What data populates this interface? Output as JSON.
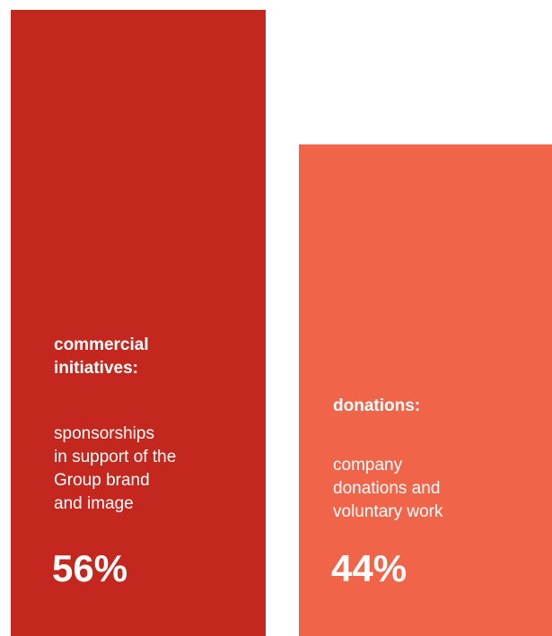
{
  "chart_data": {
    "type": "bar",
    "categories": [
      "commercial initiatives",
      "donations"
    ],
    "values": [
      56,
      44
    ],
    "unit": "%",
    "bars": [
      {
        "heading": "commercial\ninitiatives:",
        "description": "sponsorships\nin support of the\nGroup brand\nand image",
        "percent_label": "56%",
        "value": 56,
        "color": "#c4271e"
      },
      {
        "heading": "donations:",
        "description": "company\ndonations and\nvoluntary work",
        "percent_label": "44%",
        "value": 44,
        "color": "#f0654a"
      }
    ]
  }
}
